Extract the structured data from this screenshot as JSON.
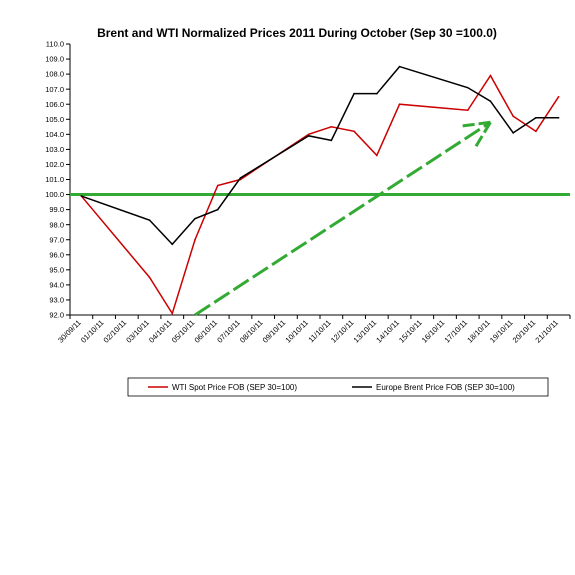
{
  "chart_data": {
    "type": "line",
    "title": "Brent and WTI Normalized Prices 2011 During October  (Sep 30 =100.0)",
    "xlabel": "",
    "ylabel": "",
    "ylim": [
      92.0,
      110.0
    ],
    "y_ticks": [
      "92.0",
      "93.0",
      "94.0",
      "95.0",
      "96.0",
      "97.0",
      "98.0",
      "99.0",
      "100.0",
      "101.0",
      "102.0",
      "103.0",
      "104.0",
      "105.0",
      "106.0",
      "107.0",
      "108.0",
      "109.0",
      "110.0"
    ],
    "categories": [
      "30/09/11",
      "01/10/11",
      "02/10/11",
      "03/10/11",
      "04/10/11",
      "05/10/11",
      "06/10/11",
      "07/10/11",
      "08/10/11",
      "09/10/11",
      "10/10/11",
      "11/10/11",
      "12/10/11",
      "13/10/11",
      "14/10/11",
      "15/10/11",
      "16/10/11",
      "17/10/11",
      "18/10/11",
      "19/10/11",
      "20/10/11",
      "21/10/11"
    ],
    "grid": false,
    "legend_position": "bottom",
    "series": [
      {
        "name": "WTI Spot Price FOB (SEP 30=100)",
        "color": "#cc0000",
        "points": [
          {
            "x": "30/09/11",
            "y": 99.9
          },
          {
            "x": "03/10/11",
            "y": 94.5
          },
          {
            "x": "04/10/11",
            "y": 92.1
          },
          {
            "x": "05/10/11",
            "y": 97.0
          },
          {
            "x": "06/10/11",
            "y": 100.6
          },
          {
            "x": "07/10/11",
            "y": 101.0
          },
          {
            "x": "10/10/11",
            "y": 104.0
          },
          {
            "x": "11/10/11",
            "y": 104.5
          },
          {
            "x": "12/10/11",
            "y": 104.2
          },
          {
            "x": "13/10/11",
            "y": 102.6
          },
          {
            "x": "14/10/11",
            "y": 106.0
          },
          {
            "x": "17/10/11",
            "y": 105.6
          },
          {
            "x": "18/10/11",
            "y": 107.9
          },
          {
            "x": "19/10/11",
            "y": 105.2
          },
          {
            "x": "20/10/11",
            "y": 104.2
          },
          {
            "x": "21/10/11",
            "y": 106.5
          }
        ]
      },
      {
        "name": "Europe Brent Price FOB (SEP 30=100)",
        "color": "#000000",
        "points": [
          {
            "x": "30/09/11",
            "y": 99.9
          },
          {
            "x": "03/10/11",
            "y": 98.3
          },
          {
            "x": "04/10/11",
            "y": 96.7
          },
          {
            "x": "05/10/11",
            "y": 98.4
          },
          {
            "x": "06/10/11",
            "y": 99.0
          },
          {
            "x": "07/10/11",
            "y": 101.1
          },
          {
            "x": "10/10/11",
            "y": 103.9
          },
          {
            "x": "11/10/11",
            "y": 103.6
          },
          {
            "x": "12/10/11",
            "y": 106.7
          },
          {
            "x": "13/10/11",
            "y": 106.7
          },
          {
            "x": "14/10/11",
            "y": 108.5
          },
          {
            "x": "17/10/11",
            "y": 107.1
          },
          {
            "x": "18/10/11",
            "y": 106.2
          },
          {
            "x": "19/10/11",
            "y": 104.1
          },
          {
            "x": "20/10/11",
            "y": 105.1
          },
          {
            "x": "21/10/11",
            "y": 105.1
          }
        ]
      }
    ],
    "annotations": [
      {
        "kind": "horizontal_line",
        "y": 100.0,
        "color": "#33aa33"
      },
      {
        "kind": "arrow",
        "from": {
          "x": "05/10/11",
          "y": 92.0
        },
        "to": {
          "x": "18/10/11",
          "y": 104.8
        },
        "color": "#33aa33",
        "style": "dashed"
      }
    ]
  }
}
